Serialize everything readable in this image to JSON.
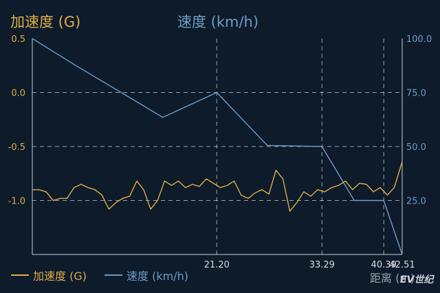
{
  "titles": {
    "left": "加速度 (G)",
    "right": "速度 (km/h)"
  },
  "legend": {
    "accel": "加速度 (G)",
    "speed": "速度 (km/h)"
  },
  "watermark": "EV世纪",
  "colors": {
    "accel": "#e3ad48",
    "speed": "#6f9cc7",
    "grid": "#c9cfd6",
    "background": "#0d1b2a"
  },
  "chart_data": {
    "type": "line",
    "xlabel": "距离 (m)",
    "xlim": [
      0,
      42.51
    ],
    "x_ticks": [
      21.2,
      33.29,
      40.39,
      42.51
    ],
    "x_tick_labels": [
      "21.20",
      "33.29",
      "40.39",
      "42.51"
    ],
    "y_left": {
      "label": "加速度 (G)",
      "lim": [
        -1.5,
        0.5
      ],
      "ticks": [
        0.5,
        0.0,
        -0.5,
        -1.0
      ],
      "tick_labels": [
        "0.5",
        "0.0",
        "-0.5",
        "-1.0"
      ]
    },
    "y_right": {
      "label": "速度 (km/h)",
      "lim": [
        0,
        100
      ],
      "ticks": [
        100,
        75,
        50,
        25
      ],
      "tick_labels": [
        "100.0",
        "75.0",
        "50.0",
        "25.0"
      ]
    },
    "grid": true,
    "series": [
      {
        "name": "速度 (km/h)",
        "axis": "right",
        "x": [
          0,
          5.0,
          10.0,
          15.0,
          21.2,
          27.0,
          33.29,
          37.0,
          40.39,
          42.51
        ],
        "y": [
          100,
          87.5,
          75.5,
          63.5,
          75.0,
          50.5,
          50.0,
          25.0,
          25.0,
          0
        ]
      },
      {
        "name": "加速度 (G)",
        "axis": "left",
        "x": [
          0,
          0.8,
          1.6,
          2.4,
          3.2,
          4.0,
          4.8,
          5.6,
          6.4,
          7.2,
          8.0,
          8.8,
          9.6,
          10.4,
          11.2,
          12.0,
          12.8,
          13.6,
          14.4,
          15.2,
          16.0,
          16.8,
          17.6,
          18.4,
          19.2,
          20.0,
          20.8,
          21.6,
          22.4,
          23.2,
          24.0,
          24.8,
          25.6,
          26.4,
          27.2,
          28.0,
          28.8,
          29.6,
          30.4,
          31.2,
          32.0,
          32.8,
          33.6,
          34.4,
          35.2,
          36.0,
          36.8,
          37.6,
          38.4,
          39.2,
          40.0,
          40.8,
          41.6,
          42.51
        ],
        "y": [
          -0.9,
          -0.9,
          -0.92,
          -1.0,
          -0.98,
          -0.98,
          -0.88,
          -0.85,
          -0.88,
          -0.9,
          -0.95,
          -1.08,
          -1.02,
          -0.98,
          -0.96,
          -0.82,
          -0.9,
          -1.08,
          -1.0,
          -0.82,
          -0.86,
          -0.82,
          -0.88,
          -0.85,
          -0.87,
          -0.8,
          -0.84,
          -0.88,
          -0.86,
          -0.82,
          -0.95,
          -0.98,
          -0.93,
          -0.9,
          -0.94,
          -0.72,
          -0.8,
          -1.1,
          -1.02,
          -0.92,
          -0.96,
          -0.9,
          -0.92,
          -0.88,
          -0.86,
          -0.82,
          -0.9,
          -0.84,
          -0.85,
          -0.92,
          -0.88,
          -0.95,
          -0.88,
          -0.64
        ]
      }
    ]
  }
}
